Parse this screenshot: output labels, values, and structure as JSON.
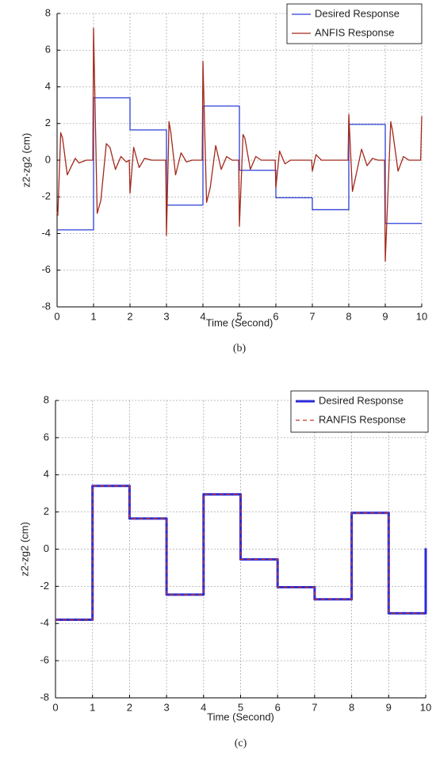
{
  "chart_data": [
    {
      "type": "line",
      "caption": "(b)",
      "x_label": "Time (Second)",
      "y_label": "z2-zg2 (cm)",
      "xlim": [
        0,
        10
      ],
      "ylim": [
        -8,
        8
      ],
      "xticks": [
        0,
        1,
        2,
        3,
        4,
        5,
        6,
        7,
        8,
        9,
        10
      ],
      "yticks": [
        -8,
        -6,
        -4,
        -2,
        0,
        2,
        4,
        6,
        8
      ],
      "grid": true,
      "legend": "upper right",
      "series": [
        {
          "name": "Desired Response",
          "color": "#2b3fd6",
          "line_style": "solid",
          "line_width": 1.3,
          "x": [
            0,
            1,
            1,
            2,
            2,
            3,
            3,
            4,
            4,
            5,
            5,
            6,
            6,
            7,
            7,
            8,
            8,
            9,
            9,
            10
          ],
          "values": [
            -3.8,
            -3.8,
            3.4,
            3.4,
            1.65,
            1.65,
            -2.45,
            -2.45,
            2.95,
            2.95,
            -0.55,
            -0.55,
            -2.05,
            -2.05,
            -2.7,
            -2.7,
            1.95,
            1.95,
            -3.45,
            -3.45
          ]
        },
        {
          "name": "ANFIS Response",
          "color": "#a3281c",
          "line_style": "solid",
          "line_width": 1.3,
          "x": [
            0,
            0.02,
            0.1,
            0.15,
            0.28,
            0.4,
            0.5,
            0.6,
            0.8,
            0.98,
            1.0,
            1.1,
            1.2,
            1.35,
            1.45,
            1.6,
            1.75,
            1.9,
            1.98,
            2.0,
            2.1,
            2.25,
            2.4,
            2.6,
            2.98,
            3.0,
            3.07,
            3.12,
            3.25,
            3.4,
            3.55,
            3.7,
            3.98,
            4.0,
            4.1,
            4.2,
            4.35,
            4.5,
            4.65,
            4.8,
            4.98,
            5.0,
            5.1,
            5.15,
            5.3,
            5.45,
            5.6,
            5.98,
            6.0,
            6.1,
            6.25,
            6.4,
            6.98,
            7.0,
            7.1,
            7.25,
            7.98,
            8.0,
            8.1,
            8.2,
            8.35,
            8.5,
            8.65,
            8.8,
            8.98,
            9.0,
            9.15,
            9.2,
            9.35,
            9.5,
            9.65,
            9.97,
            10.0
          ],
          "values": [
            -2.8,
            -3.0,
            1.5,
            1.2,
            -0.8,
            -0.3,
            0.1,
            -0.15,
            0,
            0,
            7.2,
            -2.9,
            -2.2,
            0.9,
            0.7,
            -0.5,
            0.2,
            -0.1,
            0,
            -1.8,
            0.7,
            -0.4,
            0.1,
            0,
            0,
            -4.1,
            2.1,
            1.5,
            -0.8,
            0.4,
            -0.1,
            0,
            0,
            5.4,
            -2.3,
            -1.5,
            0.8,
            -0.5,
            0.2,
            0,
            0,
            -3.6,
            1.4,
            1.2,
            -0.5,
            0.2,
            0,
            0,
            -1.5,
            0.5,
            -0.2,
            0,
            0,
            -0.6,
            0.3,
            0,
            0,
            2.5,
            -1.7,
            -0.8,
            0.6,
            -0.3,
            0.1,
            0,
            0,
            -5.5,
            2.1,
            1.6,
            -0.6,
            0.2,
            0,
            0,
            2.4
          ]
        }
      ]
    },
    {
      "type": "line",
      "caption": "(c)",
      "x_label": "Time (Second)",
      "y_label": "z2-zg2 (cm)",
      "xlim": [
        0,
        10
      ],
      "ylim": [
        -8,
        8
      ],
      "xticks": [
        0,
        1,
        2,
        3,
        4,
        5,
        6,
        7,
        8,
        9,
        10
      ],
      "yticks": [
        -8,
        -6,
        -4,
        -2,
        0,
        2,
        4,
        6,
        8
      ],
      "grid": true,
      "legend": "upper right",
      "series": [
        {
          "name": "Desired Response",
          "color": "#2b2bd6",
          "line_style": "solid",
          "line_width": 3,
          "x": [
            0,
            1,
            1,
            2,
            2,
            3,
            3,
            4,
            4,
            5,
            5,
            6,
            6,
            7,
            7,
            8,
            8,
            9,
            9,
            10,
            10
          ],
          "values": [
            -3.8,
            -3.8,
            3.4,
            3.4,
            1.65,
            1.65,
            -2.45,
            -2.45,
            2.95,
            2.95,
            -0.55,
            -0.55,
            -2.05,
            -2.05,
            -2.7,
            -2.7,
            1.95,
            1.95,
            -3.45,
            -3.45,
            0.05
          ]
        },
        {
          "name": "RANFIS Response",
          "color": "#c0392b",
          "line_style": "dashed",
          "line_width": 1.3,
          "x": [
            0,
            1,
            1,
            2,
            2,
            3,
            3,
            4,
            4,
            5,
            5,
            6,
            6,
            7,
            7,
            8,
            8,
            9,
            9,
            10
          ],
          "values": [
            -3.8,
            -3.8,
            3.4,
            3.4,
            1.65,
            1.65,
            -2.45,
            -2.45,
            2.95,
            2.95,
            -0.55,
            -0.55,
            -2.05,
            -2.05,
            -2.7,
            -2.7,
            1.95,
            1.95,
            -3.45,
            -3.45
          ]
        }
      ]
    }
  ]
}
